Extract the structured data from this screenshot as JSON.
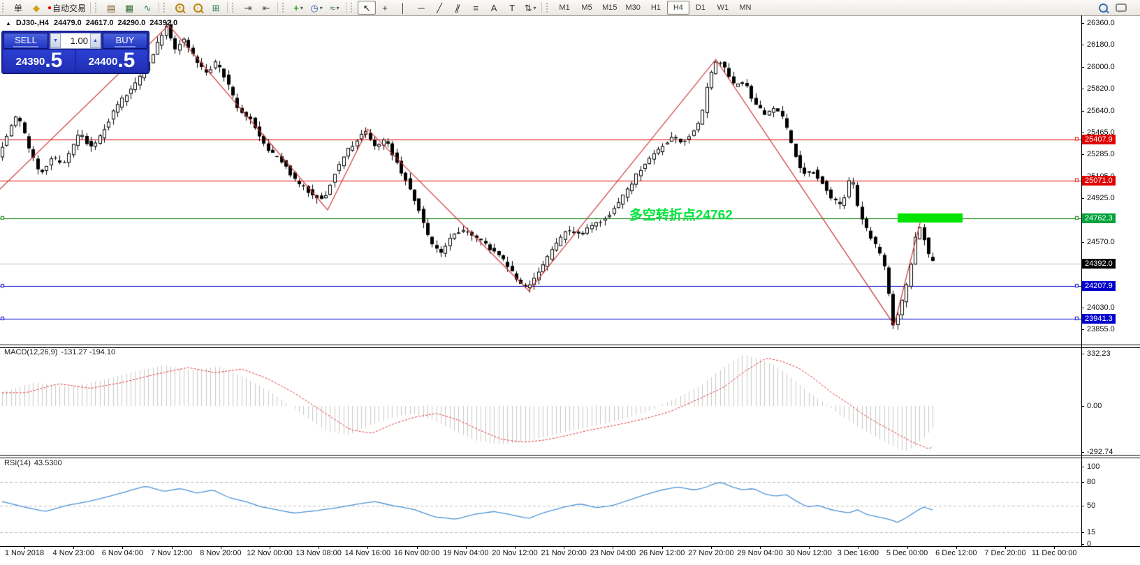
{
  "toolbar": {
    "order_button_label": "单",
    "autotrading_label": "自动交易",
    "groups": [
      {
        "name": "chart-type",
        "items": [
          {
            "n": "bar-chart-icon",
            "g": "▤",
            "c": "#7a5a2a"
          },
          {
            "n": "candlestick-icon",
            "g": "▦",
            "c": "#2f6f3f"
          },
          {
            "n": "line-chart-icon",
            "g": "∿",
            "c": "#2f6f3f"
          }
        ]
      },
      {
        "name": "zoom",
        "items": [
          {
            "n": "zoom-in-icon",
            "type": "mag",
            "sign": "+",
            "c": "#b8860b"
          },
          {
            "n": "zoom-out-icon",
            "type": "mag",
            "sign": "-",
            "c": "#b8860b"
          },
          {
            "n": "tile-windows-icon",
            "g": "⊞",
            "c": "#2f7f4f"
          }
        ]
      },
      {
        "name": "scroll",
        "items": [
          {
            "n": "auto-scroll-icon",
            "g": "⇥",
            "c": "#444444"
          },
          {
            "n": "chart-shift-icon",
            "g": "⇤",
            "c": "#444444"
          }
        ]
      },
      {
        "name": "insert",
        "items": [
          {
            "n": "indicators-icon",
            "g": "+",
            "c": "#1a9a1a",
            "dd": true
          },
          {
            "n": "periods-icon",
            "g": "◷",
            "c": "#2a55aa",
            "dd": true
          },
          {
            "n": "templates-icon",
            "g": "≈",
            "c": "#3a7a4a",
            "dd": true
          }
        ]
      },
      {
        "name": "drawing",
        "items": [
          {
            "n": "cursor-icon",
            "g": "↖",
            "c": "#111111",
            "active": true
          },
          {
            "n": "crosshair-icon",
            "g": "+",
            "c": "#333333"
          },
          {
            "n": "vertical-line-icon",
            "g": "│",
            "c": "#333333"
          },
          {
            "n": "horizontal-line-icon",
            "g": "─",
            "c": "#333333"
          },
          {
            "n": "trendline-icon",
            "g": "╱",
            "c": "#333333"
          },
          {
            "n": "equidistant-channel-icon",
            "g": "∥",
            "c": "#333333",
            "rot": true
          },
          {
            "n": "fibonacci-icon",
            "g": "≡",
            "c": "#333333"
          },
          {
            "n": "text-icon",
            "g": "A",
            "c": "#333333"
          },
          {
            "n": "label-icon",
            "g": "T",
            "c": "#333333"
          },
          {
            "n": "arrows-icon",
            "g": "⇅",
            "c": "#333333",
            "dd": true
          }
        ]
      }
    ],
    "timeframes": {
      "items": [
        "M1",
        "M5",
        "M15",
        "M30",
        "H1",
        "H4",
        "D1",
        "W1",
        "MN"
      ],
      "active": "H4"
    },
    "right_icons": [
      {
        "n": "search-icon",
        "type": "mag",
        "c": "#3d6fb4"
      },
      {
        "n": "chat-icon",
        "type": "bubble"
      }
    ]
  },
  "chart_title": {
    "collapse_icon": "▲",
    "symbol": "DJ30-,H4",
    "open": "24479.0",
    "high": "24617.0",
    "low": "24290.0",
    "close": "24392.0"
  },
  "trade_panel": {
    "sell_label": "SELL",
    "buy_label": "BUY",
    "volume": "1.00",
    "sell_price_big": "24390",
    "sell_price_sup": ".5",
    "buy_price_big": "24400",
    "buy_price_sup": ".5",
    "panel_blue": "#1b28a8"
  },
  "chart_data": {
    "type": "candlestick",
    "symbol": "DJ30-",
    "timeframe": "H4",
    "main": {
      "ylim": [
        23730,
        26420
      ],
      "slots": 244,
      "bars": 211,
      "axis_ticks": [
        {
          "v": 26360,
          "t": "26360.0"
        },
        {
          "v": 26180,
          "t": "26180.0"
        },
        {
          "v": 26000,
          "t": "26000.0"
        },
        {
          "v": 25820,
          "t": "25820.0"
        },
        {
          "v": 25640,
          "t": "25640.0"
        },
        {
          "v": 25465,
          "t": "25465.0"
        },
        {
          "v": 25285,
          "t": "25285.0"
        },
        {
          "v": 25105,
          "t": "25105.0"
        },
        {
          "v": 24925,
          "t": "24925.0"
        },
        {
          "v": 24570,
          "t": "24570.0"
        },
        {
          "v": 24030,
          "t": "24030.0"
        },
        {
          "v": 23855,
          "t": "23855.0"
        }
      ],
      "levels": [
        {
          "price": 25407.9,
          "label": "25407.9",
          "line": "#e00000",
          "bg": "#e00000",
          "ml": false,
          "mr": true
        },
        {
          "price": 25071.0,
          "label": "25071.0",
          "line": "#e00000",
          "bg": "#e00000",
          "ml": false,
          "mr": true
        },
        {
          "price": 24762.3,
          "label": "24762.3",
          "line": "#008000",
          "bg": "#00a23a",
          "ml": true,
          "mr": true
        },
        {
          "price": 24392.0,
          "label": "24392.0",
          "line": "#bbbbbb",
          "bg": "#000000",
          "ml": false,
          "mr": false
        },
        {
          "price": 24207.9,
          "label": "24207.9",
          "line": "#0000cd",
          "bg": "#0000cd",
          "ml": true,
          "mr": true
        },
        {
          "price": 23941.3,
          "label": "23941.3",
          "line": "#0000cd",
          "bg": "#0000cd",
          "ml": true,
          "mr": true
        }
      ],
      "current_price": 24392.0,
      "zigzag_color": "#d03535",
      "zigzag": [
        [
          0,
          25000
        ],
        [
          0.156,
          26340
        ],
        [
          0.303,
          24830
        ],
        [
          0.34,
          25490
        ],
        [
          0.489,
          24170
        ],
        [
          0.662,
          26060
        ],
        [
          0.827,
          23890
        ],
        [
          0.851,
          24730
        ]
      ],
      "price_path": [
        [
          0,
          25280
        ],
        [
          0.008,
          25430
        ],
        [
          0.018,
          25620
        ],
        [
          0.027,
          25380
        ],
        [
          0.038,
          25120
        ],
        [
          0.05,
          25260
        ],
        [
          0.062,
          25210
        ],
        [
          0.075,
          25450
        ],
        [
          0.088,
          25330
        ],
        [
          0.1,
          25530
        ],
        [
          0.112,
          25700
        ],
        [
          0.125,
          25830
        ],
        [
          0.138,
          26020
        ],
        [
          0.15,
          26230
        ],
        [
          0.156,
          26340
        ],
        [
          0.163,
          26140
        ],
        [
          0.172,
          26230
        ],
        [
          0.182,
          26060
        ],
        [
          0.192,
          25940
        ],
        [
          0.202,
          26040
        ],
        [
          0.212,
          25870
        ],
        [
          0.222,
          25640
        ],
        [
          0.235,
          25560
        ],
        [
          0.248,
          25320
        ],
        [
          0.262,
          25230
        ],
        [
          0.276,
          25060
        ],
        [
          0.292,
          24950
        ],
        [
          0.302,
          24920
        ],
        [
          0.312,
          25150
        ],
        [
          0.325,
          25340
        ],
        [
          0.34,
          25470
        ],
        [
          0.35,
          25330
        ],
        [
          0.358,
          25420
        ],
        [
          0.368,
          25230
        ],
        [
          0.38,
          25020
        ],
        [
          0.39,
          24820
        ],
        [
          0.4,
          24560
        ],
        [
          0.41,
          24470
        ],
        [
          0.42,
          24620
        ],
        [
          0.432,
          24670
        ],
        [
          0.443,
          24610
        ],
        [
          0.453,
          24520
        ],
        [
          0.463,
          24470
        ],
        [
          0.473,
          24350
        ],
        [
          0.483,
          24230
        ],
        [
          0.49,
          24200
        ],
        [
          0.5,
          24310
        ],
        [
          0.512,
          24500
        ],
        [
          0.525,
          24660
        ],
        [
          0.538,
          24620
        ],
        [
          0.55,
          24700
        ],
        [
          0.562,
          24760
        ],
        [
          0.575,
          24900
        ],
        [
          0.588,
          25080
        ],
        [
          0.6,
          25240
        ],
        [
          0.612,
          25330
        ],
        [
          0.622,
          25420
        ],
        [
          0.632,
          25380
        ],
        [
          0.642,
          25450
        ],
        [
          0.65,
          25560
        ],
        [
          0.658,
          25920
        ],
        [
          0.665,
          26060
        ],
        [
          0.672,
          25980
        ],
        [
          0.68,
          25850
        ],
        [
          0.69,
          25880
        ],
        [
          0.7,
          25680
        ],
        [
          0.71,
          25610
        ],
        [
          0.72,
          25660
        ],
        [
          0.728,
          25540
        ],
        [
          0.736,
          25300
        ],
        [
          0.744,
          25120
        ],
        [
          0.753,
          25160
        ],
        [
          0.762,
          25060
        ],
        [
          0.772,
          24910
        ],
        [
          0.781,
          24860
        ],
        [
          0.789,
          25130
        ],
        [
          0.796,
          24820
        ],
        [
          0.804,
          24660
        ],
        [
          0.813,
          24520
        ],
        [
          0.821,
          24330
        ],
        [
          0.828,
          23890
        ],
        [
          0.835,
          24060
        ],
        [
          0.842,
          24260
        ],
        [
          0.849,
          24640
        ],
        [
          0.853,
          24700
        ],
        [
          0.858,
          24560
        ],
        [
          0.862,
          24400
        ]
      ],
      "annotation": {
        "text": "多空转折点24762",
        "color": "#00e53c",
        "frac": 0.582,
        "price": 24795
      },
      "highlight_box": {
        "frac_start": 0.83,
        "frac_end": 0.89,
        "price": 24768,
        "color": "#00e400"
      }
    },
    "macd": {
      "name": "MACD(12,26,9)",
      "values": "-131.27 -194.10",
      "ylim": [
        -310,
        377
      ],
      "ticks": [
        {
          "v": 332.23,
          "t": "332.23"
        },
        {
          "v": 0,
          "t": "0.00"
        },
        {
          "v": -292.74,
          "t": "-292.74"
        }
      ],
      "hist_color": "#c9c9c9",
      "signal_color": "#e03030",
      "path": [
        [
          0,
          90
        ],
        [
          0.03,
          150
        ],
        [
          0.06,
          120
        ],
        [
          0.09,
          160
        ],
        [
          0.12,
          215
        ],
        [
          0.15,
          260
        ],
        [
          0.175,
          225
        ],
        [
          0.2,
          250
        ],
        [
          0.225,
          180
        ],
        [
          0.25,
          80
        ],
        [
          0.275,
          -40
        ],
        [
          0.3,
          -160
        ],
        [
          0.32,
          -185
        ],
        [
          0.34,
          -120
        ],
        [
          0.36,
          -75
        ],
        [
          0.38,
          -50
        ],
        [
          0.4,
          -95
        ],
        [
          0.42,
          -165
        ],
        [
          0.44,
          -225
        ],
        [
          0.46,
          -245
        ],
        [
          0.48,
          -230
        ],
        [
          0.5,
          -200
        ],
        [
          0.52,
          -165
        ],
        [
          0.545,
          -130
        ],
        [
          0.57,
          -90
        ],
        [
          0.595,
          -40
        ],
        [
          0.62,
          40
        ],
        [
          0.645,
          125
        ],
        [
          0.665,
          235
        ],
        [
          0.685,
          325
        ],
        [
          0.7,
          300
        ],
        [
          0.715,
          255
        ],
        [
          0.73,
          180
        ],
        [
          0.745,
          90
        ],
        [
          0.76,
          20
        ],
        [
          0.775,
          -60
        ],
        [
          0.79,
          -125
        ],
        [
          0.805,
          -185
        ],
        [
          0.82,
          -245
        ],
        [
          0.835,
          -290
        ],
        [
          0.845,
          -250
        ],
        [
          0.855,
          -180
        ],
        [
          0.862,
          -131
        ]
      ]
    },
    "rsi": {
      "name": "RSI(14)",
      "value": "43.5300",
      "ylim": [
        -3,
        113
      ],
      "line_color": "#4a92d8",
      "level_color": "#bbbbbb",
      "ticks": [
        {
          "v": 100,
          "t": "100"
        },
        {
          "v": 80,
          "t": "80"
        },
        {
          "v": 50,
          "t": "50"
        },
        {
          "v": 15,
          "t": "15"
        },
        {
          "v": 0,
          "t": "0"
        }
      ],
      "levels": [
        80,
        50,
        15
      ],
      "path": [
        [
          0,
          55
        ],
        [
          0.02,
          48
        ],
        [
          0.04,
          42
        ],
        [
          0.06,
          50
        ],
        [
          0.08,
          55
        ],
        [
          0.1,
          62
        ],
        [
          0.12,
          70
        ],
        [
          0.133,
          75
        ],
        [
          0.15,
          68
        ],
        [
          0.165,
          72
        ],
        [
          0.18,
          66
        ],
        [
          0.195,
          70
        ],
        [
          0.21,
          60
        ],
        [
          0.225,
          55
        ],
        [
          0.24,
          48
        ],
        [
          0.255,
          44
        ],
        [
          0.27,
          40
        ],
        [
          0.29,
          43
        ],
        [
          0.31,
          47
        ],
        [
          0.33,
          52
        ],
        [
          0.345,
          55
        ],
        [
          0.36,
          50
        ],
        [
          0.38,
          45
        ],
        [
          0.4,
          35
        ],
        [
          0.42,
          32
        ],
        [
          0.435,
          38
        ],
        [
          0.455,
          42
        ],
        [
          0.47,
          38
        ],
        [
          0.487,
          33
        ],
        [
          0.5,
          40
        ],
        [
          0.52,
          48
        ],
        [
          0.535,
          52
        ],
        [
          0.55,
          47
        ],
        [
          0.565,
          50
        ],
        [
          0.58,
          57
        ],
        [
          0.595,
          64
        ],
        [
          0.61,
          70
        ],
        [
          0.625,
          74
        ],
        [
          0.64,
          70
        ],
        [
          0.65,
          73
        ],
        [
          0.658,
          78
        ],
        [
          0.665,
          80
        ],
        [
          0.675,
          74
        ],
        [
          0.685,
          70
        ],
        [
          0.695,
          72
        ],
        [
          0.705,
          65
        ],
        [
          0.715,
          62
        ],
        [
          0.725,
          64
        ],
        [
          0.735,
          55
        ],
        [
          0.745,
          48
        ],
        [
          0.755,
          50
        ],
        [
          0.765,
          45
        ],
        [
          0.775,
          42
        ],
        [
          0.785,
          40
        ],
        [
          0.79,
          45
        ],
        [
          0.8,
          38
        ],
        [
          0.81,
          35
        ],
        [
          0.82,
          32
        ],
        [
          0.828,
          28
        ],
        [
          0.835,
          33
        ],
        [
          0.845,
          42
        ],
        [
          0.852,
          48
        ],
        [
          0.858,
          45
        ],
        [
          0.862,
          43.53
        ]
      ]
    },
    "time_axis": [
      "1 Nov 2018",
      "4 Nov 23:00",
      "6 Nov 04:00",
      "7 Nov 12:00",
      "8 Nov 20:00",
      "12 Nov 00:00",
      "13 Nov 08:00",
      "14 Nov 16:00",
      "16 Nov 00:00",
      "19 Nov 04:00",
      "20 Nov 12:00",
      "21 Nov 20:00",
      "23 Nov 04:00",
      "26 Nov 12:00",
      "27 Nov 20:00",
      "29 Nov 04:00",
      "30 Nov 12:00",
      "3 Dec 16:00",
      "5 Dec 00:00",
      "6 Dec 12:00",
      "7 Dec 20:00",
      "11 Dec 00:00"
    ]
  }
}
